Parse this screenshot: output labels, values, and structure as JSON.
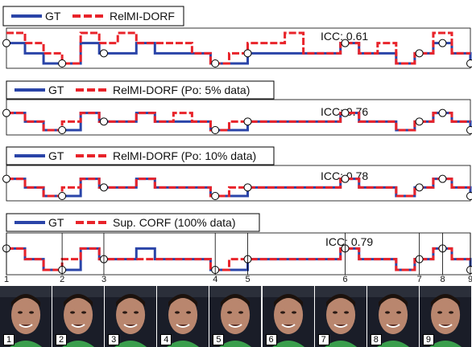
{
  "chart_data": [
    {
      "type": "line",
      "legend": [
        "GT",
        "RelMI-DORF"
      ],
      "icc_label": "ICC: 0.61",
      "x": [
        0,
        4,
        8,
        12,
        16,
        20,
        24,
        28,
        32,
        36,
        40,
        44,
        48,
        52,
        56,
        60,
        64,
        68,
        72,
        76,
        80,
        84,
        88,
        92,
        96,
        100
      ],
      "series": [
        {
          "name": "GT",
          "values": [
            2,
            1,
            0,
            0,
            2,
            1,
            1,
            2,
            1,
            1,
            1,
            0,
            0,
            1,
            1,
            1,
            1,
            1,
            2,
            1,
            1,
            0,
            1,
            2,
            1,
            0
          ]
        },
        {
          "name": "RelMI-DORF",
          "values": [
            3,
            2,
            1,
            0,
            3,
            2,
            3,
            2,
            2,
            2,
            1,
            0,
            1,
            2,
            2,
            3,
            1,
            1,
            2,
            1,
            2,
            0,
            1,
            3,
            1,
            1
          ]
        }
      ]
    },
    {
      "type": "line",
      "legend": [
        "GT",
        "RelMI-DORF (Po: 5% data)"
      ],
      "icc_label": "ICC: 0.76",
      "x": [
        0,
        4,
        8,
        12,
        16,
        20,
        24,
        28,
        32,
        36,
        40,
        44,
        48,
        52,
        56,
        60,
        64,
        68,
        72,
        76,
        80,
        84,
        88,
        92,
        96,
        100
      ],
      "series": [
        {
          "name": "GT",
          "values": [
            2,
            1,
            0,
            0,
            2,
            1,
            1,
            2,
            1,
            1,
            1,
            0,
            0,
            1,
            1,
            1,
            1,
            1,
            2,
            1,
            1,
            0,
            1,
            2,
            1,
            0
          ]
        },
        {
          "name": "RelMI-DORF (Po: 5% data)",
          "values": [
            2,
            1,
            0,
            1,
            2,
            1,
            1,
            2,
            1,
            2,
            1,
            0,
            1,
            1,
            1,
            1,
            1,
            1,
            2,
            1,
            1,
            0,
            1,
            2,
            1,
            1
          ]
        }
      ]
    },
    {
      "type": "line",
      "legend": [
        "GT",
        "RelMI-DORF (Po: 10% data)"
      ],
      "icc_label": "ICC: 0.78",
      "x": [
        0,
        4,
        8,
        12,
        16,
        20,
        24,
        28,
        32,
        36,
        40,
        44,
        48,
        52,
        56,
        60,
        64,
        68,
        72,
        76,
        80,
        84,
        88,
        92,
        96,
        100
      ],
      "series": [
        {
          "name": "GT",
          "values": [
            2,
            1,
            0,
            0,
            2,
            1,
            1,
            2,
            1,
            1,
            1,
            0,
            0,
            1,
            1,
            1,
            1,
            1,
            2,
            1,
            1,
            0,
            1,
            2,
            1,
            0
          ]
        },
        {
          "name": "RelMI-DORF (Po: 10% data)",
          "values": [
            2,
            1,
            0,
            1,
            2,
            1,
            1,
            2,
            1,
            1,
            1,
            0,
            1,
            1,
            1,
            1,
            1,
            1,
            2,
            1,
            1,
            0,
            1,
            2,
            1,
            1
          ]
        }
      ]
    },
    {
      "type": "line",
      "legend": [
        "GT",
        "Sup. CORF (100% data)"
      ],
      "icc_label": "ICC: 0.79",
      "x": [
        0,
        4,
        8,
        12,
        16,
        20,
        24,
        28,
        32,
        36,
        40,
        44,
        48,
        52,
        56,
        60,
        64,
        68,
        72,
        76,
        80,
        84,
        88,
        92,
        96,
        100
      ],
      "series": [
        {
          "name": "GT",
          "values": [
            2,
            1,
            0,
            0,
            2,
            1,
            1,
            2,
            1,
            1,
            1,
            0,
            0,
            1,
            1,
            1,
            1,
            1,
            2,
            1,
            1,
            0,
            1,
            2,
            1,
            0
          ]
        },
        {
          "name": "Sup. CORF (100% data)",
          "values": [
            2,
            1,
            0,
            1,
            2,
            1,
            1,
            1,
            1,
            1,
            1,
            0,
            1,
            1,
            1,
            1,
            1,
            1,
            2,
            1,
            1,
            0,
            1,
            2,
            1,
            1
          ]
        }
      ]
    }
  ],
  "frame_ticks": [
    "1",
    "2",
    "3",
    "4",
    "5",
    "6",
    "7",
    "8",
    "9"
  ],
  "frame_tick_x": [
    0,
    12,
    21,
    45,
    52,
    73,
    89,
    94,
    100
  ],
  "frames": [
    {
      "number": "1"
    },
    {
      "number": "2"
    },
    {
      "number": "3"
    },
    {
      "number": "4"
    },
    {
      "number": "5"
    },
    {
      "number": "6"
    },
    {
      "number": "7"
    },
    {
      "number": "8"
    },
    {
      "number": "9"
    }
  ],
  "colors": {
    "gt": "#2a44a8",
    "pred": "#e8232a",
    "marker": "#000000"
  }
}
